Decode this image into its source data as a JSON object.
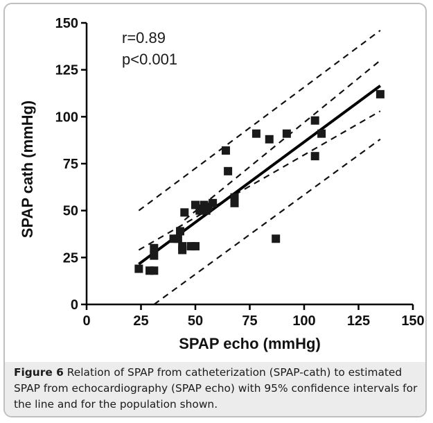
{
  "chart_data": {
    "type": "scatter",
    "xlabel": "SPAP echo (mmHg)",
    "ylabel": "SPAP cath (mmHg)",
    "xlim": [
      0,
      150
    ],
    "ylim": [
      0,
      150
    ],
    "xticks": [
      "0",
      "25",
      "50",
      "75",
      "100",
      "125",
      "150"
    ],
    "yticks": [
      "0",
      "25",
      "50",
      "75",
      "100",
      "125",
      "150"
    ],
    "annotations": [
      "r=0.89",
      "p<0.001"
    ],
    "grid": false,
    "series": [
      {
        "points": [
          [
            24,
            19
          ],
          [
            29,
            18
          ],
          [
            31,
            18
          ],
          [
            31,
            26
          ],
          [
            31,
            30
          ],
          [
            40,
            35
          ],
          [
            42,
            35
          ],
          [
            43,
            39
          ],
          [
            44,
            29
          ],
          [
            44,
            31
          ],
          [
            45,
            49
          ],
          [
            48,
            31
          ],
          [
            50,
            31
          ],
          [
            50,
            53
          ],
          [
            52,
            50
          ],
          [
            53,
            51
          ],
          [
            54,
            53
          ],
          [
            55,
            50
          ],
          [
            56,
            52
          ],
          [
            58,
            54
          ],
          [
            64,
            82
          ],
          [
            65,
            71
          ],
          [
            68,
            54
          ],
          [
            68,
            57
          ],
          [
            78,
            91
          ],
          [
            84,
            88
          ],
          [
            87,
            35
          ],
          [
            92,
            91
          ],
          [
            105,
            98
          ],
          [
            105,
            79
          ],
          [
            108,
            91
          ],
          [
            135,
            112
          ]
        ]
      }
    ],
    "fit_line": {
      "x": [
        24,
        135
      ],
      "y": [
        21.5,
        116.5
      ]
    },
    "confidence_band": {
      "upper": {
        "x": [
          24,
          135
        ],
        "y": [
          29,
          103
        ]
      },
      "lower": {
        "x": [
          45,
          135
        ],
        "y": [
          45,
          130
        ]
      }
    },
    "prediction_band": {
      "upper": {
        "x": [
          24,
          135
        ],
        "y": [
          50,
          146
        ]
      },
      "lower": {
        "x": [
          31,
          135
        ],
        "y": [
          0,
          88
        ]
      }
    }
  },
  "caption": {
    "label": "Figure 6",
    "text": "Relation of SPAP from catheterization (SPAP-cath) to estimated SPAP from echocardiography (SPAP echo) with 95% confidence intervals for the line and for the population shown."
  }
}
